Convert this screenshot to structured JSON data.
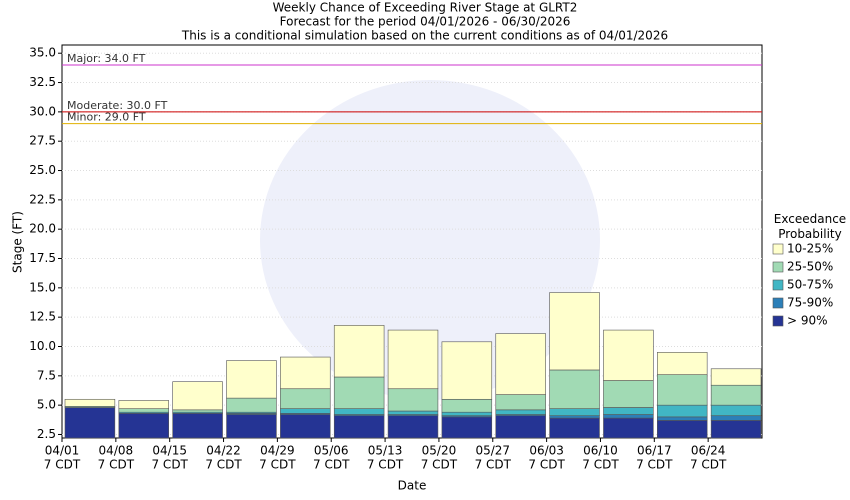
{
  "chart_data": {
    "type": "bar",
    "title": "Weekly Chance of Exceeding River Stage at GLRT2",
    "subtitle": "Forecast for the period 04/01/2026 - 06/30/2026",
    "note": "This is a conditional simulation based on the current conditions as of 04/01/2026",
    "x_label": "Date",
    "y_label": "Stage (FT)",
    "legend_title": "Exceedance Probability",
    "legend_position": "right",
    "categories": [
      "04/01",
      "04/08",
      "04/15",
      "04/22",
      "04/29",
      "05/06",
      "05/13",
      "05/20",
      "05/27",
      "06/03",
      "06/10",
      "06/17",
      "06/24"
    ],
    "category_sublabel": "7 CDT",
    "series": [
      {
        "name": "> 90%",
        "color": "#253494",
        "values": [
          4.8,
          4.3,
          4.3,
          4.2,
          4.2,
          4.1,
          4.1,
          4.0,
          4.1,
          3.9,
          3.9,
          3.7,
          3.7
        ]
      },
      {
        "name": "75-90%",
        "color": "#2c7fb8",
        "values": [
          4.8,
          4.3,
          4.3,
          4.3,
          4.3,
          4.2,
          4.2,
          4.1,
          4.2,
          4.1,
          4.2,
          4.0,
          4.1
        ]
      },
      {
        "name": "50-75%",
        "color": "#41b6c4",
        "values": [
          4.8,
          4.4,
          4.4,
          4.4,
          4.7,
          4.7,
          4.5,
          4.4,
          4.6,
          4.7,
          4.8,
          5.0,
          5.0
        ]
      },
      {
        "name": "25-50%",
        "color": "#a1dab4",
        "values": [
          4.9,
          4.7,
          4.6,
          5.6,
          6.4,
          7.4,
          6.4,
          5.5,
          5.9,
          8.0,
          7.1,
          7.6,
          6.7
        ]
      },
      {
        "name": "10-25%",
        "color": "#ffffcc",
        "values": [
          5.5,
          5.4,
          7.0,
          8.8,
          9.1,
          11.8,
          11.4,
          10.4,
          11.1,
          14.6,
          11.4,
          9.5,
          8.1
        ]
      }
    ],
    "thresholds": [
      {
        "label": "Major: 34.0 FT",
        "value": 34,
        "color": "#cc33cc"
      },
      {
        "label": "Moderate: 30.0 FT",
        "value": 30,
        "color": "#cc0000"
      },
      {
        "label": "Minor: 29.0 FT",
        "value": 29,
        "color": "#e0b000"
      }
    ],
    "ylim": [
      2.2,
      35.7
    ],
    "yticks": [
      2.5,
      {
        "value": 5,
        "label": "5.0"
      },
      7.5,
      {
        "value": 10,
        "label": "10.0"
      },
      12.5,
      {
        "value": 15,
        "label": "15.0"
      },
      17.5,
      {
        "value": 20,
        "label": "20.0"
      },
      22.5,
      {
        "value": 25,
        "label": "25.0"
      },
      27.5,
      {
        "value": 30,
        "label": "30.0"
      },
      32.5,
      {
        "value": 35,
        "label": "35.0"
      }
    ],
    "grid": true
  }
}
